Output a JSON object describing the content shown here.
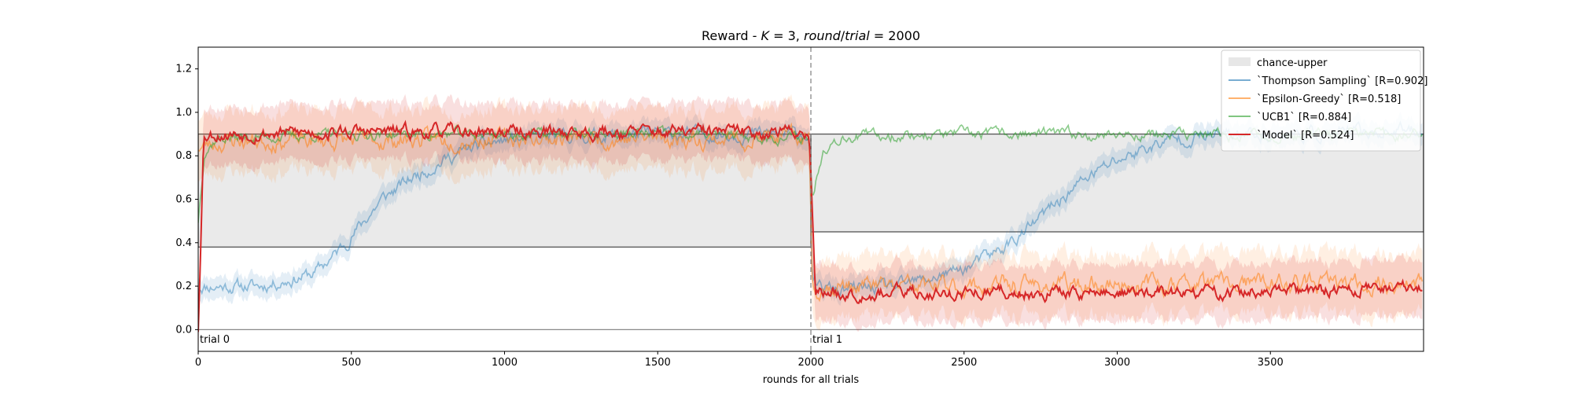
{
  "chart_data": {
    "type": "line",
    "title_parts": {
      "prefix": "Reward - ",
      "k_var": "K",
      "k_eq": " = 3, ",
      "round_var": "round",
      "slash": "/",
      "trial_var": "trial",
      "trial_eq": " = 2000"
    },
    "xlabel": "rounds for all trials",
    "ylabel": "",
    "xlim": [
      0,
      4000
    ],
    "ylim": [
      -0.1,
      1.3
    ],
    "x_ticks": [
      0,
      500,
      1000,
      1500,
      2000,
      2500,
      3000,
      3500
    ],
    "x_tick_labels": [
      "0",
      "500",
      "1000",
      "1500",
      "2000",
      "2500",
      "3000",
      "3500"
    ],
    "y_ticks": [
      0.0,
      0.2,
      0.4,
      0.6,
      0.8,
      1.0,
      1.2
    ],
    "y_tick_labels": [
      "0.0",
      "0.2",
      "0.4",
      "0.6",
      "0.8",
      "1.0",
      "1.2"
    ],
    "grid": false,
    "legend_position": "top-right",
    "trial_boundaries": [
      0,
      2000
    ],
    "trial_labels": [
      "trial 0",
      "trial 1"
    ],
    "chance_upper": {
      "name": "chance-upper",
      "color": "#bbbbbb",
      "segments": [
        {
          "x_start": 0,
          "x_end": 2000,
          "lower": 0.38,
          "upper": 0.9
        },
        {
          "x_start": 2000,
          "x_end": 4000,
          "lower": 0.45,
          "upper": 0.9
        }
      ]
    },
    "series": [
      {
        "name": "Thompson Sampling",
        "label_name": "`Thompson Sampling`",
        "label_stat": "[R=0.902]",
        "color": "#1f77b4",
        "line_opacity": 0.45,
        "band_opacity": 0.12,
        "band": 0.05,
        "anchors": [
          [
            0,
            0.2
          ],
          [
            100,
            0.2
          ],
          [
            200,
            0.2
          ],
          [
            300,
            0.23
          ],
          [
            380,
            0.26
          ],
          [
            450,
            0.35
          ],
          [
            530,
            0.48
          ],
          [
            600,
            0.6
          ],
          [
            700,
            0.7
          ],
          [
            800,
            0.78
          ],
          [
            900,
            0.84
          ],
          [
            1000,
            0.87
          ],
          [
            1200,
            0.89
          ],
          [
            1500,
            0.9
          ],
          [
            1995,
            0.9
          ],
          [
            2005,
            0.2
          ],
          [
            2100,
            0.18
          ],
          [
            2300,
            0.2
          ],
          [
            2500,
            0.28
          ],
          [
            2600,
            0.35
          ],
          [
            2700,
            0.45
          ],
          [
            2800,
            0.58
          ],
          [
            2900,
            0.7
          ],
          [
            3000,
            0.78
          ],
          [
            3100,
            0.84
          ],
          [
            3200,
            0.88
          ],
          [
            3400,
            0.9
          ],
          [
            3700,
            0.9
          ],
          [
            4000,
            0.92
          ]
        ],
        "noise": 0.022,
        "seed": 11
      },
      {
        "name": "Epsilon-Greedy",
        "label_name": "`Epsilon-Greedy`",
        "label_stat": "[R=0.518]",
        "color": "#ff7f0e",
        "line_opacity": 0.55,
        "band_opacity": 0.12,
        "band": 0.14,
        "anchors": [
          [
            0,
            0.84
          ],
          [
            100,
            0.87
          ],
          [
            500,
            0.87
          ],
          [
            1000,
            0.88
          ],
          [
            1500,
            0.88
          ],
          [
            1995,
            0.88
          ],
          [
            2005,
            0.2
          ],
          [
            2100,
            0.2
          ],
          [
            2500,
            0.2
          ],
          [
            3000,
            0.21
          ],
          [
            3500,
            0.21
          ],
          [
            4000,
            0.21
          ]
        ],
        "noise": 0.03,
        "seed": 23
      },
      {
        "name": "UCB1",
        "label_name": "`UCB1`",
        "label_stat": "[R=0.884]",
        "color": "#2ca02c",
        "line_opacity": 0.55,
        "band_opacity": 0.0,
        "band": 0.0,
        "anchors": [
          [
            0,
            0.5
          ],
          [
            20,
            0.82
          ],
          [
            60,
            0.88
          ],
          [
            500,
            0.9
          ],
          [
            1000,
            0.9
          ],
          [
            1500,
            0.9
          ],
          [
            1995,
            0.88
          ],
          [
            2005,
            0.6
          ],
          [
            2040,
            0.84
          ],
          [
            2100,
            0.89
          ],
          [
            2500,
            0.9
          ],
          [
            3000,
            0.9
          ],
          [
            3500,
            0.89
          ],
          [
            4000,
            0.9
          ]
        ],
        "noise": 0.018,
        "seed": 37
      },
      {
        "name": "Model",
        "label_name": "`Model`",
        "label_stat": "[R=0.524]",
        "color": "#d62728",
        "line_opacity": 1.0,
        "band_opacity": 0.15,
        "band": 0.13,
        "anchors": [
          [
            0,
            0.0
          ],
          [
            18,
            0.9
          ],
          [
            500,
            0.91
          ],
          [
            1000,
            0.91
          ],
          [
            1500,
            0.91
          ],
          [
            1995,
            0.91
          ],
          [
            2015,
            0.17
          ],
          [
            2100,
            0.17
          ],
          [
            2500,
            0.17
          ],
          [
            3000,
            0.17
          ],
          [
            3500,
            0.17
          ],
          [
            3990,
            0.2
          ]
        ],
        "noise": 0.022,
        "seed": 53
      }
    ]
  }
}
